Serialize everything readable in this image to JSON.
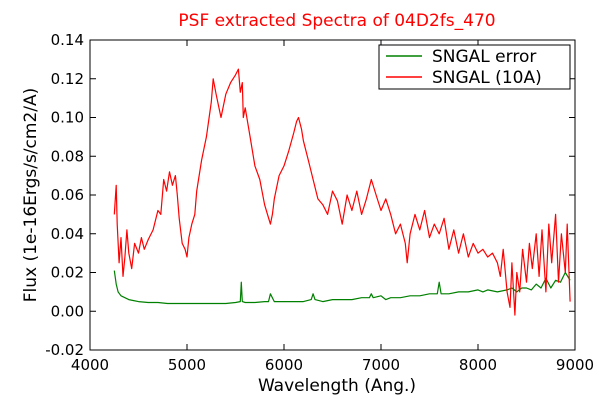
{
  "chart_data": {
    "type": "line",
    "title": "PSF extracted Spectra of 04D2fs_470",
    "xlabel": "Wavelength (Ang.)",
    "ylabel": "Flux (1e-16Ergs/s/cm2/A)",
    "xlim": [
      4000,
      9000
    ],
    "ylim": [
      -0.02,
      0.14
    ],
    "xticks": [
      4000,
      5000,
      6000,
      7000,
      8000,
      9000
    ],
    "xtick_labels": [
      "4000",
      "5000",
      "6000",
      "7000",
      "8000",
      "9000"
    ],
    "yticks": [
      -0.02,
      0.0,
      0.02,
      0.04,
      0.06,
      0.08,
      0.1,
      0.12,
      0.14
    ],
    "ytick_labels": [
      "-0.02",
      "0.00",
      "0.02",
      "0.04",
      "0.06",
      "0.08",
      "0.10",
      "0.12",
      "0.14"
    ],
    "grid": false,
    "legend_position": "top-right",
    "series": [
      {
        "name": "SNGAL error",
        "color": "#008000",
        "x": [
          4250,
          4270,
          4290,
          4320,
          4360,
          4400,
          4450,
          4500,
          4600,
          4700,
          4800,
          4900,
          5000,
          5100,
          5200,
          5300,
          5400,
          5500,
          5550,
          5560,
          5570,
          5600,
          5700,
          5800,
          5840,
          5860,
          5900,
          6000,
          6100,
          6200,
          6280,
          6300,
          6320,
          6400,
          6500,
          6600,
          6700,
          6800,
          6880,
          6900,
          6920,
          7000,
          7050,
          7100,
          7200,
          7300,
          7400,
          7500,
          7580,
          7600,
          7620,
          7700,
          7800,
          7900,
          8000,
          8050,
          8100,
          8200,
          8300,
          8350,
          8400,
          8450,
          8500,
          8550,
          8600,
          8650,
          8700,
          8750,
          8800,
          8850,
          8900,
          8950
        ],
        "y": [
          0.021,
          0.014,
          0.01,
          0.008,
          0.007,
          0.006,
          0.0055,
          0.005,
          0.0045,
          0.0045,
          0.004,
          0.004,
          0.004,
          0.004,
          0.004,
          0.004,
          0.004,
          0.0045,
          0.005,
          0.015,
          0.005,
          0.0045,
          0.0045,
          0.005,
          0.005,
          0.009,
          0.005,
          0.005,
          0.005,
          0.005,
          0.006,
          0.009,
          0.006,
          0.005,
          0.006,
          0.006,
          0.006,
          0.007,
          0.007,
          0.009,
          0.007,
          0.008,
          0.006,
          0.007,
          0.007,
          0.008,
          0.008,
          0.009,
          0.009,
          0.015,
          0.009,
          0.009,
          0.01,
          0.01,
          0.011,
          0.01,
          0.011,
          0.01,
          0.011,
          0.012,
          0.01,
          0.012,
          0.012,
          0.011,
          0.014,
          0.012,
          0.017,
          0.012,
          0.016,
          0.015,
          0.02,
          0.016
        ]
      },
      {
        "name": "SNGAL (10A)",
        "color": "#ff0000",
        "x": [
          4250,
          4270,
          4280,
          4300,
          4320,
          4340,
          4360,
          4380,
          4400,
          4430,
          4460,
          4500,
          4530,
          4560,
          4600,
          4650,
          4700,
          4730,
          4760,
          4790,
          4820,
          4850,
          4880,
          4900,
          4920,
          4950,
          4980,
          5000,
          5020,
          5050,
          5080,
          5100,
          5150,
          5200,
          5250,
          5270,
          5300,
          5350,
          5400,
          5450,
          5500,
          5530,
          5550,
          5570,
          5580,
          5600,
          5650,
          5700,
          5750,
          5800,
          5830,
          5860,
          5880,
          5900,
          5950,
          6000,
          6050,
          6100,
          6130,
          6150,
          6180,
          6200,
          6250,
          6300,
          6350,
          6400,
          6450,
          6500,
          6550,
          6600,
          6650,
          6700,
          6750,
          6800,
          6850,
          6900,
          6950,
          7000,
          7050,
          7100,
          7150,
          7200,
          7250,
          7270,
          7300,
          7350,
          7400,
          7450,
          7500,
          7550,
          7600,
          7650,
          7700,
          7750,
          7800,
          7850,
          7900,
          7950,
          8000,
          8050,
          8100,
          8150,
          8200,
          8230,
          8260,
          8300,
          8330,
          8350,
          8380,
          8400,
          8430,
          8460,
          8500,
          8530,
          8560,
          8600,
          8630,
          8660,
          8700,
          8730,
          8760,
          8800,
          8830,
          8860,
          8900,
          8920,
          8950
        ],
        "y": [
          0.05,
          0.065,
          0.045,
          0.025,
          0.038,
          0.018,
          0.028,
          0.042,
          0.03,
          0.022,
          0.035,
          0.03,
          0.038,
          0.032,
          0.037,
          0.042,
          0.052,
          0.05,
          0.068,
          0.062,
          0.072,
          0.065,
          0.07,
          0.06,
          0.048,
          0.035,
          0.032,
          0.028,
          0.038,
          0.045,
          0.05,
          0.062,
          0.078,
          0.09,
          0.108,
          0.12,
          0.112,
          0.1,
          0.112,
          0.118,
          0.122,
          0.125,
          0.113,
          0.118,
          0.1,
          0.105,
          0.09,
          0.075,
          0.068,
          0.055,
          0.05,
          0.045,
          0.05,
          0.058,
          0.07,
          0.075,
          0.083,
          0.092,
          0.098,
          0.1,
          0.094,
          0.088,
          0.078,
          0.068,
          0.058,
          0.055,
          0.05,
          0.062,
          0.057,
          0.045,
          0.06,
          0.052,
          0.062,
          0.05,
          0.058,
          0.068,
          0.06,
          0.052,
          0.058,
          0.05,
          0.04,
          0.045,
          0.035,
          0.025,
          0.04,
          0.05,
          0.042,
          0.052,
          0.038,
          0.045,
          0.04,
          0.048,
          0.032,
          0.042,
          0.03,
          0.04,
          0.028,
          0.035,
          0.03,
          0.032,
          0.028,
          0.03,
          0.025,
          0.018,
          0.032,
          0.01,
          0.002,
          0.025,
          -0.002,
          0.02,
          0.01,
          0.032,
          0.015,
          0.035,
          0.022,
          0.04,
          0.018,
          0.042,
          0.01,
          0.045,
          0.025,
          0.05,
          0.015,
          0.04,
          0.02,
          0.045,
          0.005
        ]
      }
    ]
  }
}
